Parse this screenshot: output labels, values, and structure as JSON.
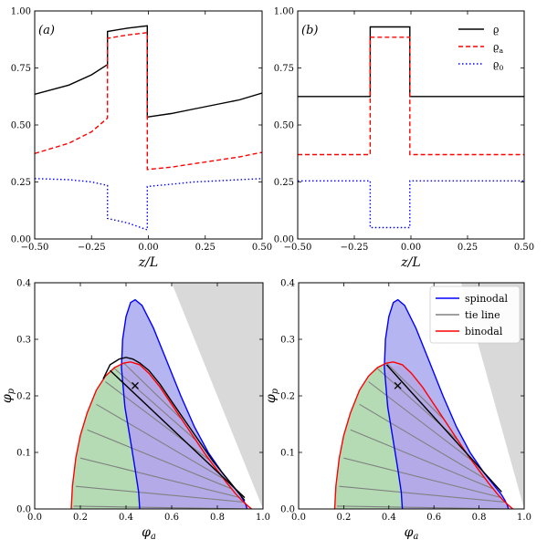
{
  "chart_data": [
    {
      "id": "a",
      "type": "line",
      "panel_label": "(a)",
      "xlabel": "z/L",
      "ylabel": "",
      "xlim": [
        -0.5,
        0.5
      ],
      "ylim": [
        0,
        1
      ],
      "xticks": [
        -0.5,
        -0.25,
        0,
        0.25,
        0.5
      ],
      "xtick_labels": [
        "−0.50",
        "−0.25",
        "0.00",
        "0.25",
        "0.50"
      ],
      "yticks": [
        0,
        0.25,
        0.5,
        0.75,
        1
      ],
      "ytick_labels": [
        "0.00",
        "0.25",
        "0.50",
        "0.75",
        "1.00"
      ],
      "series": [
        {
          "key": "rho",
          "color": "#000000",
          "dash": "",
          "x": [
            -0.5,
            -0.35,
            -0.25,
            -0.18,
            -0.18,
            -0.09,
            -0.005,
            -0.005,
            0.1,
            0.2,
            0.3,
            0.4,
            0.5
          ],
          "y": [
            0.635,
            0.675,
            0.72,
            0.765,
            0.91,
            0.925,
            0.935,
            0.535,
            0.55,
            0.57,
            0.59,
            0.61,
            0.64
          ]
        },
        {
          "key": "rho_a",
          "color": "#ff0000",
          "dash": "5,3",
          "x": [
            -0.5,
            -0.35,
            -0.25,
            -0.18,
            -0.18,
            -0.09,
            -0.005,
            -0.005,
            0.1,
            0.2,
            0.3,
            0.4,
            0.5
          ],
          "y": [
            0.375,
            0.42,
            0.47,
            0.53,
            0.88,
            0.895,
            0.905,
            0.305,
            0.315,
            0.33,
            0.345,
            0.36,
            0.38
          ]
        },
        {
          "key": "rho_0",
          "color": "#0000ff",
          "dash": "1.5,2.5",
          "x": [
            -0.5,
            -0.35,
            -0.25,
            -0.18,
            -0.18,
            -0.09,
            -0.005,
            -0.005,
            0.1,
            0.2,
            0.3,
            0.4,
            0.5
          ],
          "y": [
            0.265,
            0.26,
            0.25,
            0.235,
            0.09,
            0.07,
            0.04,
            0.23,
            0.24,
            0.25,
            0.255,
            0.26,
            0.265
          ]
        }
      ]
    },
    {
      "id": "b",
      "type": "line",
      "panel_label": "(b)",
      "xlabel": "z/L",
      "ylabel": "",
      "xlim": [
        -0.5,
        0.5
      ],
      "ylim": [
        0,
        1
      ],
      "xticks": [
        -0.5,
        -0.25,
        0,
        0.25,
        0.5
      ],
      "xtick_labels": [
        "−0.50",
        "−0.25",
        "0.00",
        "0.25",
        "0.50"
      ],
      "yticks": [
        0,
        0.25,
        0.5,
        0.75,
        1
      ],
      "ytick_labels": [
        "0.00",
        "0.25",
        "0.50",
        "0.75",
        "1.00"
      ],
      "legend": {
        "placement": "top-right",
        "entries": [
          {
            "key": "rho",
            "label": "ϱ",
            "sub": ""
          },
          {
            "key": "rho_a",
            "label": "ϱ",
            "sub": "a"
          },
          {
            "key": "rho_0",
            "label": "ϱ",
            "sub": "0"
          }
        ]
      },
      "series": [
        {
          "key": "rho",
          "color": "#000000",
          "dash": "",
          "x": [
            -0.5,
            -0.18,
            -0.18,
            -0.005,
            -0.005,
            0.5
          ],
          "y": [
            0.625,
            0.625,
            0.93,
            0.93,
            0.625,
            0.625
          ]
        },
        {
          "key": "rho_a",
          "color": "#ff0000",
          "dash": "5,3",
          "x": [
            -0.5,
            -0.18,
            -0.18,
            -0.005,
            -0.005,
            0.5
          ],
          "y": [
            0.37,
            0.37,
            0.885,
            0.885,
            0.37,
            0.37
          ]
        },
        {
          "key": "rho_0",
          "color": "#0000ff",
          "dash": "1.5,2.5",
          "x": [
            -0.5,
            -0.18,
            -0.18,
            -0.005,
            -0.005,
            0.5
          ],
          "y": [
            0.255,
            0.255,
            0.05,
            0.05,
            0.255,
            0.255
          ]
        }
      ]
    },
    {
      "id": "c",
      "type": "phase-diagram",
      "xlabel": "φ",
      "xlabel_sub": "a",
      "ylabel": "φ",
      "ylabel_sub": "p",
      "xlim": [
        0,
        1
      ],
      "ylim": [
        0,
        0.4
      ],
      "xticks": [
        0,
        0.2,
        0.4,
        0.6,
        0.8,
        1.0
      ],
      "xtick_labels": [
        "0.0",
        "0.2",
        "0.4",
        "0.6",
        "0.8",
        "1.0"
      ],
      "yticks": [
        0,
        0.1,
        0.2,
        0.3,
        0.4
      ],
      "ytick_labels": [
        "0.0",
        "0.1",
        "0.2",
        "0.3",
        "0.4"
      ],
      "colors": {
        "spinodal": "#0000ff",
        "spinodal_fill": "#a8a8f0",
        "binodal": "#ff0000",
        "tie_line": "#808080",
        "green_fill": "#b5dbb5",
        "pink_fill": "#f8b4b4",
        "forbidden": "#d9d9d9",
        "extra_line": "#000000"
      },
      "spinodal": {
        "x": [
          0.46,
          0.455,
          0.44,
          0.42,
          0.395,
          0.38,
          0.385,
          0.4,
          0.42,
          0.44,
          0.47,
          0.52,
          0.58,
          0.64,
          0.7,
          0.76,
          0.82,
          0.87,
          0.9,
          0.915,
          0.925,
          0.93
        ],
        "y": [
          0.0,
          0.03,
          0.07,
          0.12,
          0.18,
          0.25,
          0.3,
          0.34,
          0.365,
          0.37,
          0.36,
          0.32,
          0.26,
          0.2,
          0.145,
          0.1,
          0.065,
          0.04,
          0.025,
          0.015,
          0.007,
          0.0
        ]
      },
      "binodal": {
        "x": [
          0.16,
          0.165,
          0.18,
          0.2,
          0.23,
          0.27,
          0.31,
          0.35,
          0.39,
          0.42,
          0.46,
          0.5,
          0.55,
          0.6,
          0.65,
          0.7,
          0.75,
          0.8,
          0.84,
          0.88,
          0.91,
          0.935,
          0.95
        ],
        "y": [
          0.0,
          0.04,
          0.09,
          0.13,
          0.17,
          0.21,
          0.235,
          0.25,
          0.258,
          0.26,
          0.255,
          0.24,
          0.215,
          0.185,
          0.155,
          0.125,
          0.095,
          0.068,
          0.047,
          0.027,
          0.014,
          0.005,
          0.0
        ]
      },
      "tie_lines": [
        {
          "x": [
            0.17,
            0.94
          ],
          "y": [
            0.005,
            0.0
          ]
        },
        {
          "x": [
            0.18,
            0.92
          ],
          "y": [
            0.04,
            0.012
          ]
        },
        {
          "x": [
            0.2,
            0.9
          ],
          "y": [
            0.09,
            0.02
          ]
        },
        {
          "x": [
            0.23,
            0.86
          ],
          "y": [
            0.14,
            0.036
          ]
        },
        {
          "x": [
            0.27,
            0.82
          ],
          "y": [
            0.185,
            0.055
          ]
        },
        {
          "x": [
            0.31,
            0.77
          ],
          "y": [
            0.225,
            0.085
          ]
        },
        {
          "x": [
            0.35,
            0.71
          ],
          "y": [
            0.248,
            0.12
          ]
        },
        {
          "x": [
            0.39,
            0.64
          ],
          "y": [
            0.258,
            0.16
          ]
        }
      ],
      "black_curve": {
        "x": [
          0.3,
          0.33,
          0.37,
          0.4,
          0.43,
          0.46,
          0.5,
          0.55,
          0.6,
          0.66,
          0.72,
          0.78,
          0.84,
          0.89,
          0.92
        ],
        "y": [
          0.23,
          0.255,
          0.265,
          0.268,
          0.265,
          0.258,
          0.245,
          0.22,
          0.19,
          0.155,
          0.12,
          0.085,
          0.055,
          0.03,
          0.015
        ]
      },
      "black_line": {
        "x": [
          0.33,
          0.92
        ],
        "y": [
          0.245,
          0.02
        ]
      },
      "marker": {
        "x": 0.44,
        "y": 0.218
      },
      "forbidden_region": {
        "x": [
          0.6,
          1.0,
          1.0
        ],
        "y": [
          0.4,
          0.4,
          0.0
        ]
      }
    },
    {
      "id": "d",
      "type": "phase-diagram",
      "xlabel": "φ",
      "xlabel_sub": "a",
      "ylabel": "φ",
      "ylabel_sub": "p",
      "xlim": [
        0,
        1
      ],
      "ylim": [
        0,
        0.4
      ],
      "xticks": [
        0,
        0.2,
        0.4,
        0.6,
        0.8,
        1.0
      ],
      "xtick_labels": [
        "0.0",
        "0.2",
        "0.4",
        "0.6",
        "0.8",
        "1.0"
      ],
      "yticks": [
        0,
        0.1,
        0.2,
        0.3,
        0.4
      ],
      "ytick_labels": [
        "0.0",
        "0.1",
        "0.2",
        "0.3",
        "0.4"
      ],
      "legend": {
        "placement": "top-right",
        "entries": [
          {
            "key": "spinodal",
            "label": "spinodal"
          },
          {
            "key": "tie_line",
            "label": "tie line"
          },
          {
            "key": "binodal",
            "label": "binodal"
          }
        ]
      },
      "colors": {
        "spinodal": "#0000ff",
        "spinodal_fill": "#a8a8f0",
        "binodal": "#ff0000",
        "tie_line": "#808080",
        "green_fill": "#b5dbb5",
        "pink_fill": "#f8b4b4",
        "forbidden": "#d9d9d9",
        "extra_line": "#000000"
      },
      "spinodal": {
        "x": [
          0.46,
          0.455,
          0.44,
          0.42,
          0.395,
          0.38,
          0.385,
          0.4,
          0.42,
          0.44,
          0.47,
          0.52,
          0.58,
          0.64,
          0.7,
          0.76,
          0.82,
          0.87,
          0.9,
          0.915,
          0.925,
          0.93
        ],
        "y": [
          0.0,
          0.03,
          0.07,
          0.12,
          0.18,
          0.25,
          0.3,
          0.34,
          0.365,
          0.37,
          0.36,
          0.32,
          0.26,
          0.2,
          0.145,
          0.1,
          0.065,
          0.04,
          0.025,
          0.015,
          0.007,
          0.0
        ]
      },
      "binodal": {
        "x": [
          0.16,
          0.165,
          0.18,
          0.2,
          0.23,
          0.27,
          0.31,
          0.35,
          0.39,
          0.42,
          0.46,
          0.5,
          0.55,
          0.6,
          0.65,
          0.7,
          0.75,
          0.8,
          0.84,
          0.88,
          0.91,
          0.935,
          0.95
        ],
        "y": [
          0.0,
          0.04,
          0.09,
          0.13,
          0.17,
          0.21,
          0.235,
          0.25,
          0.258,
          0.26,
          0.255,
          0.24,
          0.215,
          0.185,
          0.155,
          0.125,
          0.095,
          0.068,
          0.047,
          0.027,
          0.014,
          0.005,
          0.0
        ]
      },
      "tie_lines": [
        {
          "x": [
            0.17,
            0.94
          ],
          "y": [
            0.005,
            0.0
          ]
        },
        {
          "x": [
            0.18,
            0.92
          ],
          "y": [
            0.04,
            0.012
          ]
        },
        {
          "x": [
            0.2,
            0.9
          ],
          "y": [
            0.09,
            0.02
          ]
        },
        {
          "x": [
            0.23,
            0.86
          ],
          "y": [
            0.14,
            0.036
          ]
        },
        {
          "x": [
            0.27,
            0.82
          ],
          "y": [
            0.185,
            0.055
          ]
        },
        {
          "x": [
            0.31,
            0.77
          ],
          "y": [
            0.225,
            0.085
          ]
        },
        {
          "x": [
            0.35,
            0.71
          ],
          "y": [
            0.248,
            0.12
          ]
        },
        {
          "x": [
            0.39,
            0.64
          ],
          "y": [
            0.258,
            0.16
          ]
        }
      ],
      "black_line": {
        "x": [
          0.39,
          0.9
        ],
        "y": [
          0.255,
          0.03
        ]
      },
      "marker": {
        "x": 0.44,
        "y": 0.218
      },
      "forbidden_region": {
        "x": [
          0.72,
          1.0,
          1.0
        ],
        "y": [
          0.4,
          0.4,
          0.0
        ]
      }
    }
  ]
}
